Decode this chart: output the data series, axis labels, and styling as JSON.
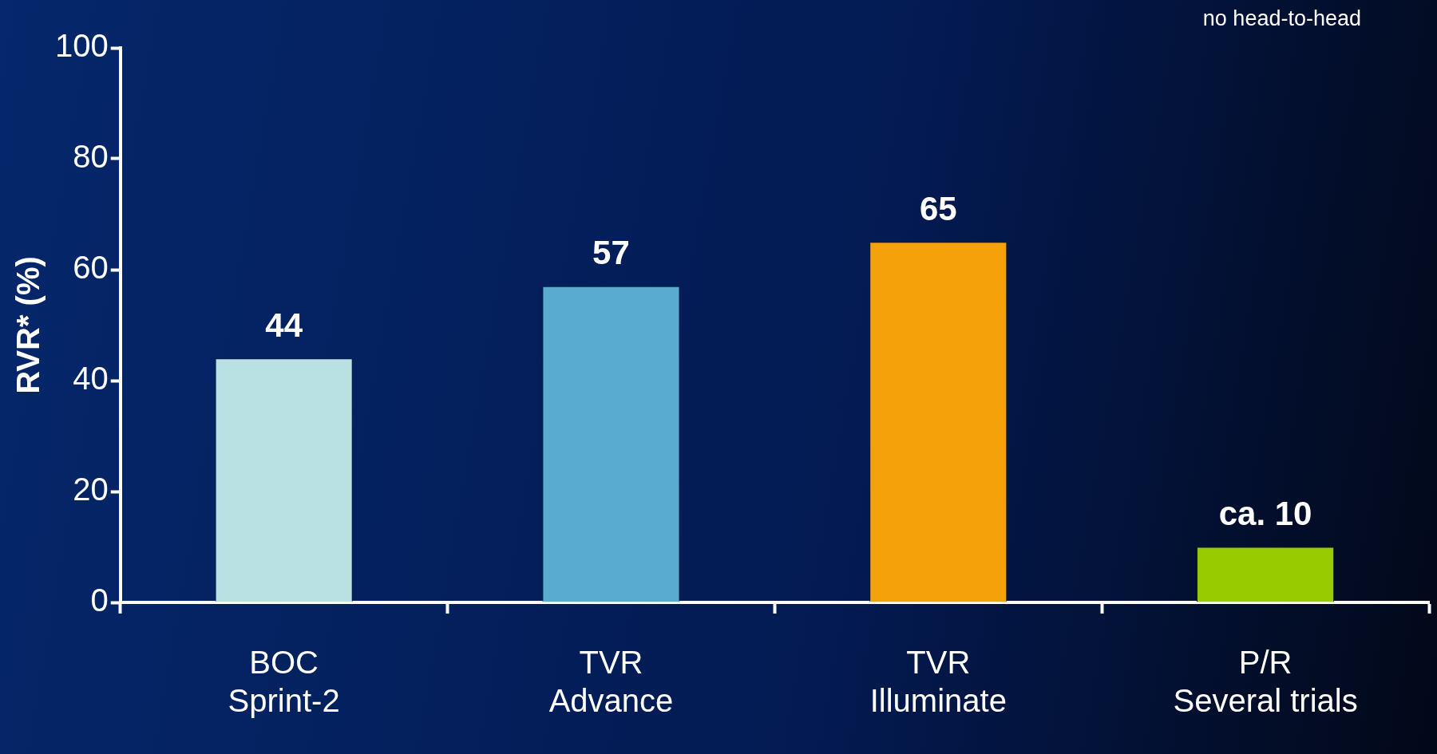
{
  "chart_data": {
    "type": "bar",
    "ylabel": "RVR* (%)",
    "categories": [
      "BOC\nSprint-2",
      "TVR\nAdvance",
      "TVR\nIlluminate",
      "P/R\nSeveral trials"
    ],
    "values": [
      44,
      57,
      65,
      10
    ],
    "value_labels": [
      "44",
      "57",
      "65",
      "ca. 10"
    ],
    "colors": [
      "#b9e0e3",
      "#5aabd0",
      "#f5a10a",
      "#99cc00"
    ],
    "ylim": [
      0,
      100
    ],
    "yticks": [
      0,
      20,
      40,
      60,
      80,
      100
    ],
    "grid": false,
    "legend": false,
    "annotations": [
      "no head-to-head"
    ]
  }
}
